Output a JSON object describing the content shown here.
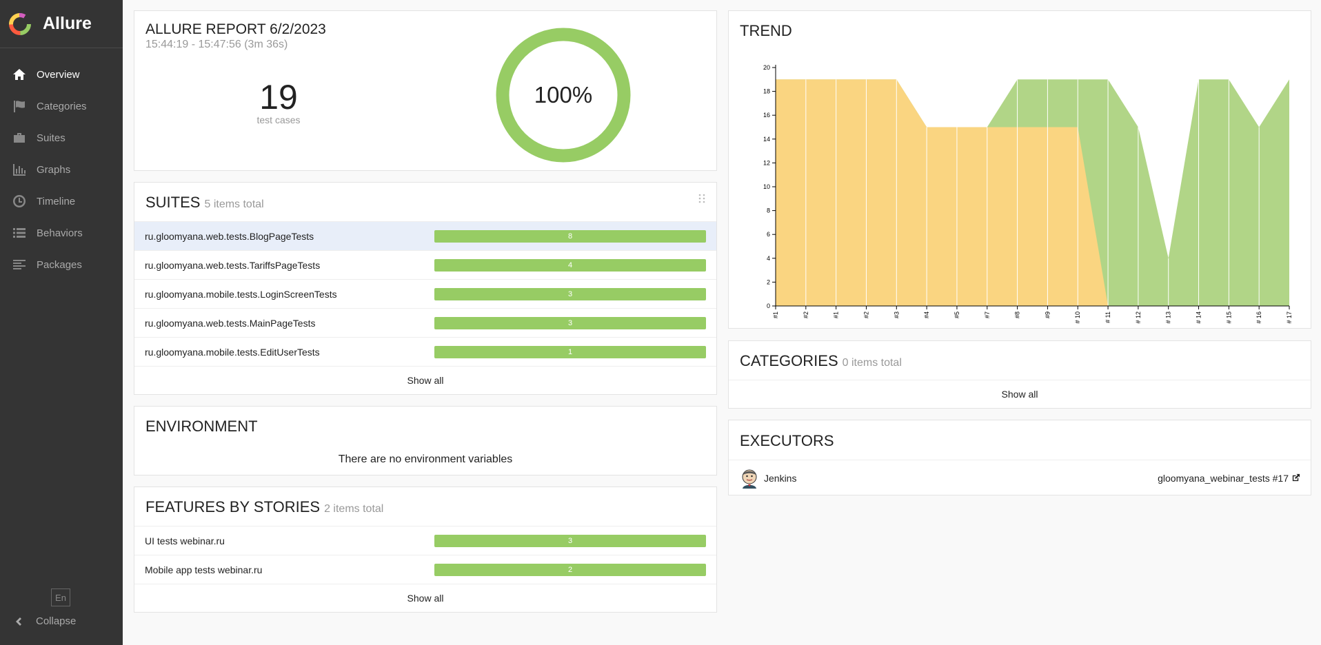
{
  "app": {
    "name": "Allure"
  },
  "sidebar": {
    "items": [
      {
        "label": "Overview",
        "icon": "home-icon"
      },
      {
        "label": "Categories",
        "icon": "flag-icon"
      },
      {
        "label": "Suites",
        "icon": "briefcase-icon"
      },
      {
        "label": "Graphs",
        "icon": "bar-chart-icon"
      },
      {
        "label": "Timeline",
        "icon": "clock-icon"
      },
      {
        "label": "Behaviors",
        "icon": "list-icon"
      },
      {
        "label": "Packages",
        "icon": "align-left-icon"
      }
    ],
    "lang": "En",
    "collapse_label": "Collapse"
  },
  "summary": {
    "title": "ALLURE REPORT 6/2/2023",
    "time": "15:44:19 - 15:47:56 (3m 36s)",
    "count": "19",
    "count_label": "test cases",
    "percent": "100%",
    "pass_fraction": 1.0
  },
  "suites": {
    "title": "SUITES",
    "subtitle": "5 items total",
    "items": [
      {
        "name": "ru.gloomyana.web.tests.BlogPageTests",
        "count": "8"
      },
      {
        "name": "ru.gloomyana.web.tests.TariffsPageTests",
        "count": "4"
      },
      {
        "name": "ru.gloomyana.mobile.tests.LoginScreenTests",
        "count": "3"
      },
      {
        "name": "ru.gloomyana.web.tests.MainPageTests",
        "count": "3"
      },
      {
        "name": "ru.gloomyana.mobile.tests.EditUserTests",
        "count": "1"
      }
    ],
    "show_all": "Show all"
  },
  "environment": {
    "title": "ENVIRONMENT",
    "message": "There are no environment variables"
  },
  "features": {
    "title": "FEATURES BY STORIES",
    "subtitle": "2 items total",
    "items": [
      {
        "name": "UI tests webinar.ru",
        "count": "3"
      },
      {
        "name": "Mobile app tests webinar.ru",
        "count": "2"
      }
    ],
    "show_all": "Show all"
  },
  "trend": {
    "title": "TREND"
  },
  "categories": {
    "title": "CATEGORIES",
    "subtitle": "0 items total",
    "show_all": "Show all"
  },
  "executors": {
    "title": "EXECUTORS",
    "name": "Jenkins",
    "build": "gloomyana_webinar_tests #17"
  },
  "colors": {
    "passed": "#97cc64",
    "broken": "#ffd050",
    "sidebar": "#343434"
  },
  "chart_data": {
    "type": "area",
    "categories": [
      "#1",
      "#2",
      "#1",
      "#2",
      "#3",
      "#4",
      "#5",
      "#7",
      "#8",
      "#9",
      "# 10",
      "# 11",
      "# 12",
      "# 13",
      "# 14",
      "# 15",
      "# 16",
      "# 17"
    ],
    "series": [
      {
        "name": "",
        "color": "#fad581",
        "values": [
          19,
          19,
          19,
          19,
          19,
          15,
          15,
          15,
          15,
          15,
          15,
          0,
          0,
          0,
          0,
          0,
          0,
          0
        ]
      },
      {
        "name": "",
        "color": "#b1d587",
        "values": [
          19,
          19,
          19,
          19,
          19,
          15,
          15,
          15,
          19,
          19,
          19,
          19,
          15,
          4,
          19,
          19,
          15,
          19
        ]
      }
    ],
    "yticks": [
      "0",
      "2",
      "4",
      "6",
      "8",
      "10",
      "12",
      "14",
      "16",
      "18",
      "20"
    ],
    "ylim": [
      0,
      20
    ]
  }
}
